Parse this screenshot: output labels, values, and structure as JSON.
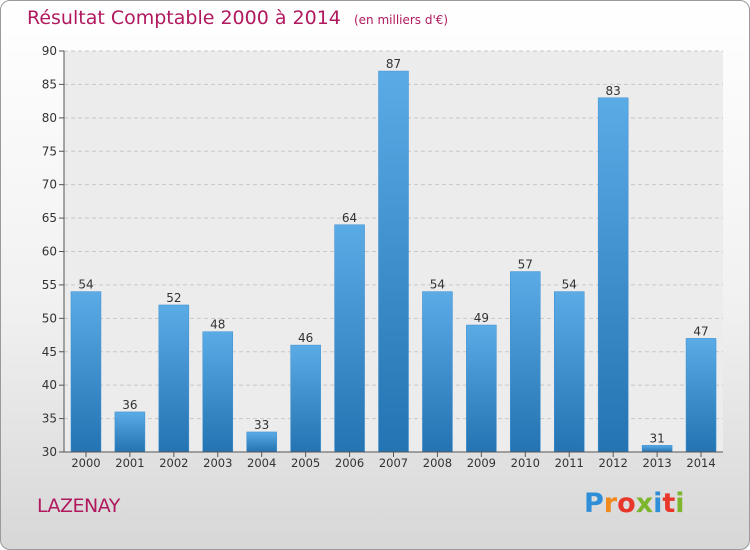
{
  "chart_data": {
    "type": "bar",
    "title": "Résultat Comptable 2000 à 2014",
    "subtitle": "(en milliers d'€)",
    "categories": [
      "2000",
      "2001",
      "2002",
      "2003",
      "2004",
      "2005",
      "2006",
      "2007",
      "2008",
      "2009",
      "2010",
      "2011",
      "2012",
      "2013",
      "2014"
    ],
    "values": [
      54,
      36,
      52,
      48,
      33,
      46,
      64,
      87,
      54,
      49,
      57,
      54,
      83,
      31,
      47
    ],
    "ylim": [
      30,
      90
    ],
    "yticks": [
      30,
      35,
      40,
      45,
      50,
      55,
      60,
      65,
      70,
      75,
      80,
      85,
      90
    ],
    "xlabel": "",
    "ylabel": "",
    "grid": true
  },
  "commune": "LAZENAY",
  "brand": {
    "letters": [
      "P",
      "r",
      "o",
      "x",
      "i",
      "t",
      "i"
    ],
    "colors": [
      "#2e8fd8",
      "#f08a1c",
      "#e8362a",
      "#7db62c",
      "#2e8fd8",
      "#e8362a",
      "#7db62c"
    ]
  },
  "colors": {
    "title": "#b0195e",
    "bar_light": "#5aabe6",
    "bar_dark": "#2473b2",
    "grid": "#c8c8c8"
  }
}
